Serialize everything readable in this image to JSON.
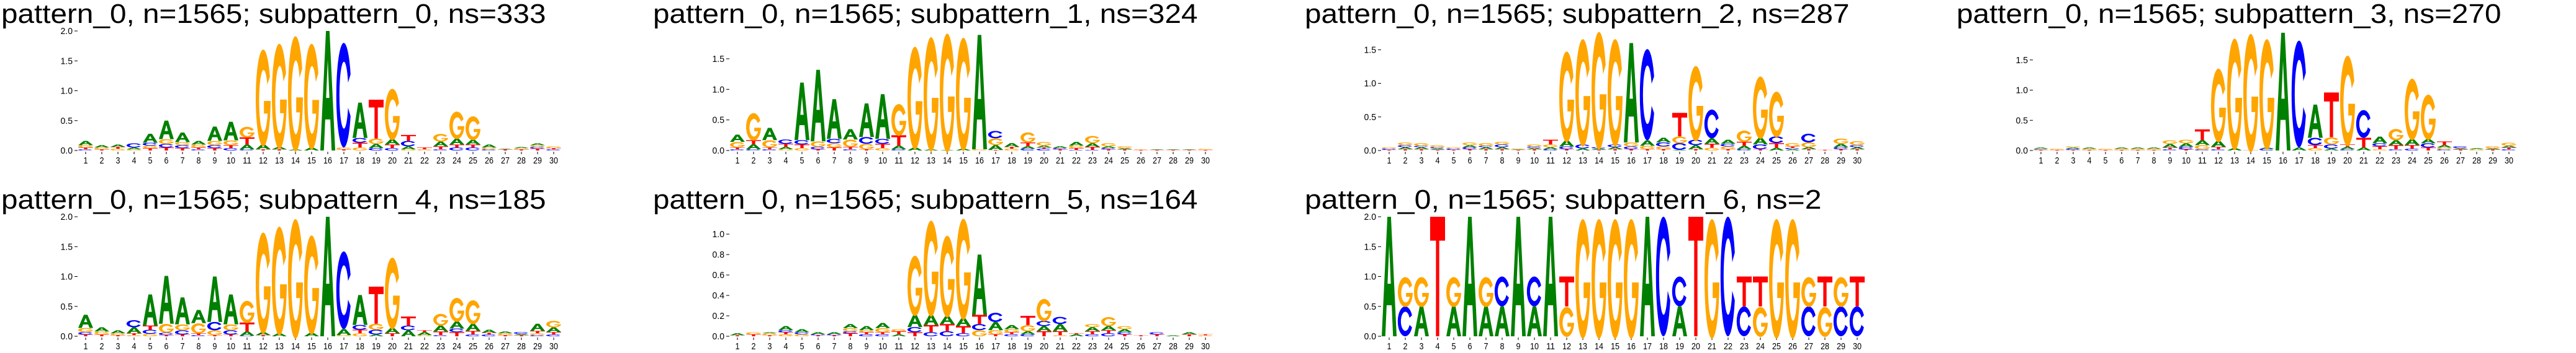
{
  "colors": {
    "A": "#008000",
    "C": "#0000ff",
    "G": "#ffa500",
    "T": "#ff0000"
  },
  "chart_data": [
    {
      "type": "sequence-logo",
      "title": "pattern_0, n=1565; subpattern_0, ns=333",
      "xlabel": "",
      "ylabel": "",
      "ylim": [
        0,
        2.0
      ],
      "yticks": [
        "0.0",
        "0.5",
        "1.0",
        "1.5",
        "2.0"
      ],
      "xticks": [
        "1",
        "2",
        "3",
        "4",
        "5",
        "6",
        "7",
        "8",
        "9",
        "10",
        "11",
        "12",
        "13",
        "14",
        "15",
        "16",
        "17",
        "18",
        "19",
        "20",
        "21",
        "22",
        "23",
        "24",
        "25",
        "26",
        "27",
        "28",
        "29",
        "30"
      ],
      "positions": [
        "C.02 T.03 G.04 A.07",
        "T.02 G.03 A.04",
        "G.03 T.03 A.04",
        "G.02 A.03 C.07",
        "T.04 G.04 C.05 A.15",
        "T.05 C.06 G.08 A.31",
        "T.04 C.05 G.05 A.16",
        "C.02 T.03 G.05 A.06",
        "T.04 C.05 G.07 A.24",
        "C.04 T.05 G.08 A.31",
        "C.02 A.08 T.12 G.18",
        "T.02 A.08 G1.62",
        "T.02 A.04 G1.76",
        "A.02 G1.93",
        "A.05 G1.77",
        "A2.0",
        "T.02 G.03 C1.75",
        "G.05 T.08 C.08 A.59",
        "C.04 A.07 G.09 T.65",
        "C.04 T.06 A.09 G.86",
        "G.02 A.05 C.09 T.10",
        "G.02 T.03",
        "C.02 T.05 A.08 G.13",
        "C.05 T.05 A.10 G.46",
        "C.05 T.05 A.08 G.40",
        "C.02 G.03 A.05",
        "T.02 A.01",
        "T.02 G.02 A.02",
        "T.03 C.03 G.03 A.03",
        "C.02 T.02 G.03"
      ]
    },
    {
      "type": "sequence-logo",
      "title": "pattern_0, n=1565; subpattern_1, ns=324",
      "xlabel": "",
      "ylabel": "",
      "ylim": [
        0,
        1.955
      ],
      "yticks": [
        "0.0",
        "0.5",
        "1.0",
        "1.5"
      ],
      "xticks": [
        "1",
        "2",
        "3",
        "4",
        "5",
        "6",
        "7",
        "8",
        "9",
        "10",
        "11",
        "12",
        "13",
        "14",
        "15",
        "16",
        "17",
        "18",
        "19",
        "20",
        "21",
        "22",
        "23",
        "24",
        "25",
        "26",
        "27",
        "28",
        "29",
        "30"
      ],
      "positions": [
        "C.02 T.03 G.09 A.12",
        "C.02 A.08 T.07 G.45",
        "C.02 T.03 G.12 A.20",
        "G.02 A.04 T.05 C.07",
        "G.04 T.06 C.07 A.94",
        "T.02 C.04 G.09 A1.17",
        "T.05 G.07 C.07 A.65",
        "C.02 T.04 G.12 A.17",
        "T.02 G.09 C.11 A.55",
        "G.04 T.07 C.08 A.73",
        "C.02 A.06 T.17 G.52",
        "A.05 G1.68",
        "A.02 G1.87",
        "A.01 G1.94",
        "A.03 G1.85",
        "G.02 A1.87",
        "T.01 A.08 G.11 C.12",
        "G.03 T.03 A.06",
        "C.03 A.04 T.06 G.17",
        "C.03 T.02 A.03 G.06",
        "T.02 C.02 A.03",
        "C.01 T.03 G.04 A.06",
        "C.01 T.05 A.06 G.12",
        "T.02 C.02 A.03 G.05",
        "T.02 A.02 G.03",
        "T.01 G.01",
        "T.01 A.01",
        "T.01 A.01",
        "T.01 A.01",
        "T.01 G.02"
      ]
    },
    {
      "type": "sequence-logo",
      "title": "pattern_0, n=1565; subpattern_2, ns=287",
      "xlabel": "",
      "ylabel": "",
      "ylim": [
        0,
        1.78
      ],
      "yticks": [
        "0.0",
        "0.5",
        "1.0",
        "1.5"
      ],
      "xticks": [
        "1",
        "2",
        "3",
        "4",
        "5",
        "6",
        "7",
        "8",
        "9",
        "10",
        "11",
        "12",
        "13",
        "14",
        "15",
        "16",
        "17",
        "18",
        "19",
        "20",
        "21",
        "22",
        "23",
        "24",
        "25",
        "26",
        "27",
        "28",
        "29",
        "30"
      ],
      "positions": [
        "T.01 C.02 G.02",
        "T.02 A.03 C.03 G.04",
        "T.02 A.03 C.02 G.04",
        "T.01 A.02 C.02 G.03",
        "T.01 C.02 G.02",
        "T.02 C.03 A.03 G.04",
        "T.02 A.03 C.02 G.04",
        "T.02 A.03 C.04 G.04",
        "T.01 A.01 G.01",
        "T.02 A.02 C.02 G.03",
        "C.02 A.03 G.04 T.07",
        "T.02 C.04 A.09 G1.35",
        "A.03 C.06 G1.60",
        "T.01 A.02 C.02 G1.75",
        "T.02 A.03 C.04 G1.60",
        "T.02 C.04 G.06 A1.48",
        "T.02 G.05 A.08 C1.36",
        "T.02 G.04 C.06 A.07",
        "A.01 C.10 G.10 T.35",
        "T.02 A.06 C.08 G1.12",
        "G.04 T.06 A.08 C.43",
        "T.02 G.04 C.04 A.06",
        "C.02 A.05 T.06 G.17",
        "T.02 C.07 A.10 G.93",
        "A.04 T.07 C.10 G.68",
        "A.02 C.02 T.02 G.05",
        "T.02 A.03 G.07 C.13",
        "T.01",
        "T.02 C.03 A.05 G.08",
        "T.02 A.03 C.03 G.06"
      ]
    },
    {
      "type": "sequence-logo",
      "title": "pattern_0, n=1565; subpattern_3, ns=270",
      "xlabel": "",
      "ylabel": "",
      "ylim": [
        0,
        1.98
      ],
      "yticks": [
        "0.0",
        "0.5",
        "1.0",
        "1.5"
      ],
      "xticks": [
        "1",
        "2",
        "3",
        "4",
        "5",
        "6",
        "7",
        "8",
        "9",
        "10",
        "11",
        "12",
        "13",
        "14",
        "15",
        "16",
        "17",
        "18",
        "19",
        "20",
        "21",
        "22",
        "23",
        "24",
        "25",
        "26",
        "27",
        "28",
        "29",
        "30"
      ],
      "positions": [
        "T.01 C.01 G.01 A.02",
        "T.01 G.02",
        "T.01 C.02 A.02 G.02",
        "T.01 G.02 A.02",
        "T.01 G.02",
        "T.01 G.02 A.02",
        "T.01 G.02 A.02",
        "T.01 G.02 A.02",
        "C.02 T.03 A.06 G.06",
        "T.02 C.04 A.06 G.06",
        "C.02 G.07 A.08 T.18",
        "C.02 T.04 A.10 G1.22",
        "A.04 G1.85",
        "T.01 G1.96",
        "C.03 A.02 G1.83",
        "A1.95",
        "A.05 C1.77",
        "G.04 T.05 C.12 A.55",
        "A.03 C.07 G.12 T.74",
        "C.02 A.04 T.04 G1.50",
        "A.05 T.16 C.46",
        "G.02 T.05 C.05 A.11",
        "C.02 T.07 A.08 G.19",
        "C.03 T.06 A.10 G1.02",
        "T.05 C.07 A.07 G.75",
        "C.02 G.03 A.04 T.06",
        "T.02 A.02 C.03",
        "G.02 A.02",
        "T.02 A.02 G.03",
        "C.02 T.03 A.03 G.05"
      ]
    },
    {
      "type": "sequence-logo",
      "title": "pattern_0, n=1565; subpattern_4, ns=185",
      "xlabel": "",
      "ylabel": "",
      "ylim": [
        0,
        2.0
      ],
      "yticks": [
        "0.0",
        "0.5",
        "1.0",
        "1.5",
        "2.0"
      ],
      "xticks": [
        "1",
        "2",
        "3",
        "4",
        "5",
        "6",
        "7",
        "8",
        "9",
        "10",
        "11",
        "12",
        "13",
        "14",
        "15",
        "16",
        "17",
        "18",
        "19",
        "20",
        "21",
        "22",
        "23",
        "24",
        "25",
        "26",
        "27",
        "28",
        "29",
        "30"
      ],
      "positions": [
        "T.03 C.04 G.07 A.22",
        "T.03 G.05 A.07",
        "T.02 G.03 A.05",
        "G.02 T.03 A.10 C.12",
        "G.04 C.07 T.07 A.52",
        "T.02 C.04 G.15 A.80",
        "T.03 C.07 G.10 A.45",
        "C.02 T.03 G.17 A.22",
        "T.02 G.08 C.14 A.76",
        "T.03 C.07 G.10 A.50",
        "C.01 A.07 T.15 G.37",
        "T.02 A.05 G1.70",
        "A.05 G1.82",
        "G2.0",
        "A.06 G1.66",
        "A2.0",
        "G.02 A.10 C1.30",
        "G.05 T.06 C.08 A.50",
        "A.03 C.08 G.10 T.62",
        "T.05 A.09 G1.20",
        "A.10 C.08 T.15",
        "G.02 A.05 T.03",
        "C.02 T.06 A.10 G.20",
        "T.07 C.06 A.12 G.40",
        "C.03 T.06 A.12 G.40",
        "C.03 T.03 A.05",
        "T.02 G.03 A.03",
        "T.02 A.02 C.03",
        "C.02 G.03 T.04 A.12",
        "C.03 T.04 A.08 G.11"
      ]
    },
    {
      "type": "sequence-logo",
      "title": "pattern_0, n=1565; subpattern_5, ns=164",
      "xlabel": "",
      "ylabel": "",
      "ylim": [
        0,
        1.17
      ],
      "yticks": [
        "0.0",
        "0.2",
        "0.4",
        "0.6",
        "0.8",
        "1.0"
      ],
      "xticks": [
        "1",
        "2",
        "3",
        "4",
        "5",
        "6",
        "7",
        "8",
        "9",
        "10",
        "11",
        "12",
        "13",
        "14",
        "15",
        "16",
        "17",
        "18",
        "19",
        "20",
        "21",
        "22",
        "23",
        "24",
        "25",
        "26",
        "27",
        "28",
        "29",
        "30"
      ],
      "positions": [
        "T.01 A.02",
        "T.02 G.02",
        "T.01 G.02 A.01",
        "G.02 T.02 C.02 A.04",
        "G.02 C.02 A.03",
        "T.01 C.01 A.02",
        "T.01 C.01 A.02",
        "T.03 C.02 G.03 A.04",
        "C.02 T.02 G.02 A.04",
        "C.02 T.02 G.04 A.05",
        "A.02 T.03 G.02",
        "T.04 C.05 A.12 G.59",
        "C.04 T.07 A.10 G.94",
        "C.05 T.07 A.08 G.80",
        "C.03 T.07 A.08 G.99",
        "G.06 C.06 T.09 A.59",
        "T.02 G.04 A.08 C.09",
        "C.02 T.02 G.03 A.04",
        "C.02 A.03 G.06 T.09",
        "T.05 A.05 C.05 G.22",
        "G.01 T.04 A.07 C.07",
        "A.02 T.01",
        "C.02 T.03 A.04 G.03",
        "C.03 T.03 A.04 G.09",
        "T.02 C.02 A.03 G.03",
        "T.01",
        "T.02 C.02",
        "A.01",
        "T.02 A.02",
        "G.01 T.01"
      ]
    },
    {
      "type": "sequence-logo",
      "title": "pattern_0, n=1565; subpattern_6, ns=2",
      "xlabel": "",
      "ylabel": "",
      "ylim": [
        0,
        2.0
      ],
      "yticks": [
        "0.0",
        "0.5",
        "1.0",
        "1.5",
        "2.0"
      ],
      "xticks": [
        "1",
        "2",
        "3",
        "4",
        "5",
        "6",
        "7",
        "8",
        "9",
        "10",
        "11",
        "12",
        "13",
        "14",
        "15",
        "16",
        "17",
        "18",
        "19",
        "20",
        "21",
        "22",
        "23",
        "24",
        "25",
        "26",
        "27",
        "28",
        "29",
        "30"
      ],
      "positions": [
        "A2.0",
        "C.5 G.5",
        "A.5 G.5",
        "T2.0",
        "A.5 G.5",
        "A2.0",
        "A.5 G.5",
        "A.5 C.5",
        "A2.0",
        "A.5 C.5",
        "A2.0",
        "G.5 T.5",
        "G2.0",
        "G2.0",
        "G2.0",
        "G2.0",
        "A2.0",
        "C2.0",
        "A.5 C.5",
        "T2.0",
        "G2.0",
        "C2.0",
        "C.5 T.5",
        "G.5 T.5",
        "G2.0",
        "G2.0",
        "C.5 G.5",
        "G.5 T.5",
        "C.5 G.5",
        "C.5 T.5"
      ]
    }
  ]
}
